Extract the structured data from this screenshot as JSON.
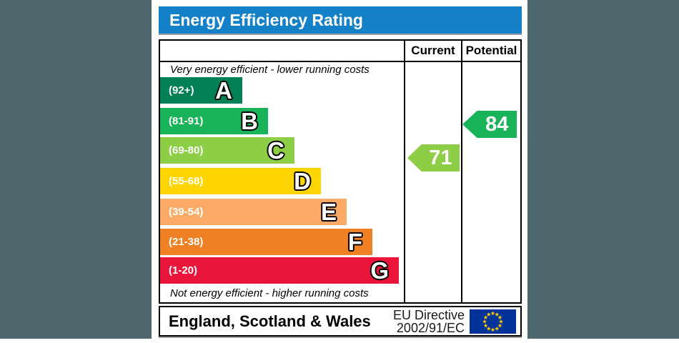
{
  "page": {
    "background_color": "#4d676d",
    "sheet_color": "#ffffff"
  },
  "header": {
    "title": "Energy Efficiency Rating",
    "bg_color": "#1480c8",
    "text_color": "#ffffff"
  },
  "table": {
    "columns": {
      "current": "Current",
      "potential": "Potential"
    },
    "top_note": "Very energy efficient - lower running costs",
    "bottom_note": "Not energy efficient - higher running costs"
  },
  "chart_data": {
    "type": "bar",
    "title": "Energy Efficiency Rating",
    "bands": [
      {
        "letter": "A",
        "range_label": "(92+)",
        "min": 92,
        "max": 100,
        "color": "#008054"
      },
      {
        "letter": "B",
        "range_label": "(81-91)",
        "min": 81,
        "max": 91,
        "color": "#19b459"
      },
      {
        "letter": "C",
        "range_label": "(69-80)",
        "min": 69,
        "max": 80,
        "color": "#8dce46"
      },
      {
        "letter": "D",
        "range_label": "(55-68)",
        "min": 55,
        "max": 68,
        "color": "#ffd500"
      },
      {
        "letter": "E",
        "range_label": "(39-54)",
        "min": 39,
        "max": 54,
        "color": "#fcaa65"
      },
      {
        "letter": "F",
        "range_label": "(21-38)",
        "min": 21,
        "max": 38,
        "color": "#ef8023"
      },
      {
        "letter": "G",
        "range_label": "(1-20)",
        "min": 1,
        "max": 20,
        "color": "#e9153b"
      }
    ],
    "current": {
      "value": 71,
      "band": "C",
      "color": "#8dce46"
    },
    "potential": {
      "value": 84,
      "band": "B",
      "color": "#19b459"
    }
  },
  "footer": {
    "region": "England, Scotland & Wales",
    "directive_line1": "EU Directive",
    "directive_line2": "2002/91/EC",
    "eu_flag": {
      "bg": "#003399",
      "star_color": "#ffcc00",
      "stars": 12
    }
  }
}
